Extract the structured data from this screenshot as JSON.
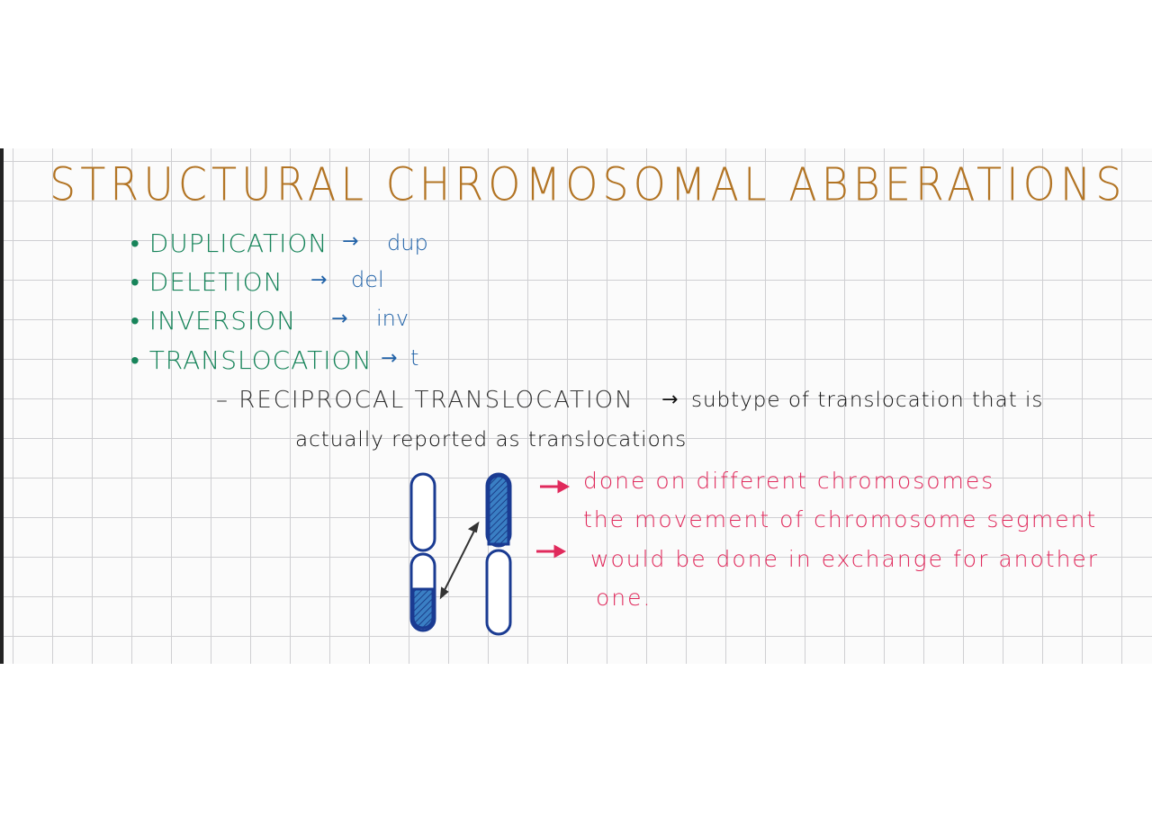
{
  "title": "STRUCTURAL CHROMOSOMAL ABBERATIONS",
  "bullets": [
    {
      "term": "DUPLICATION",
      "abbreviation": "dup"
    },
    {
      "term": "DELETION",
      "abbreviation": "del"
    },
    {
      "term": "INVERSION",
      "abbreviation": "inv"
    },
    {
      "term": "TRANSLOCATION",
      "abbreviation": "t"
    }
  ],
  "subtype": {
    "term": "RECIPROCAL TRANSLOCATION",
    "description": [
      "subtype of translocation that is",
      "actually reported as translocations"
    ]
  },
  "notes": [
    {
      "lines": [
        "done on different chromosomes"
      ]
    },
    {
      "lines": [
        "the movement of chromosome segment",
        "would be done in exchange for another",
        "one."
      ]
    }
  ]
}
